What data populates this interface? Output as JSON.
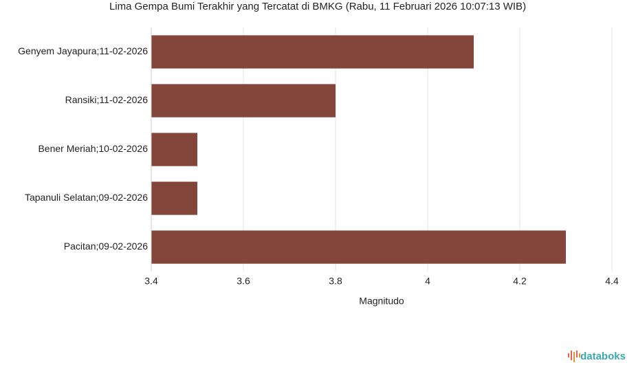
{
  "chart_data": {
    "type": "hbar",
    "title": "Lima Gempa Bumi Terakhir yang Tercatat di BMKG (Rabu, 11 Februari 2026 10:07:13 WIB)",
    "x_label": "Magnitudo",
    "categories": [
      "Genyem Jayapura;11-02-2026",
      "Ransiki;11-02-2026",
      "Bener Meriah;10-02-2026",
      "Tapanuli Selatan;09-02-2026",
      "Pacitan;09-02-2026"
    ],
    "values": [
      4.1,
      3.8,
      3.5,
      3.5,
      4.3
    ],
    "color": "#84453b",
    "xlim": [
      3.4,
      4.4
    ],
    "xticks": [
      3.4,
      3.6,
      3.8,
      4,
      4.2,
      4.4
    ],
    "grid": true
  },
  "brand": "databoks"
}
